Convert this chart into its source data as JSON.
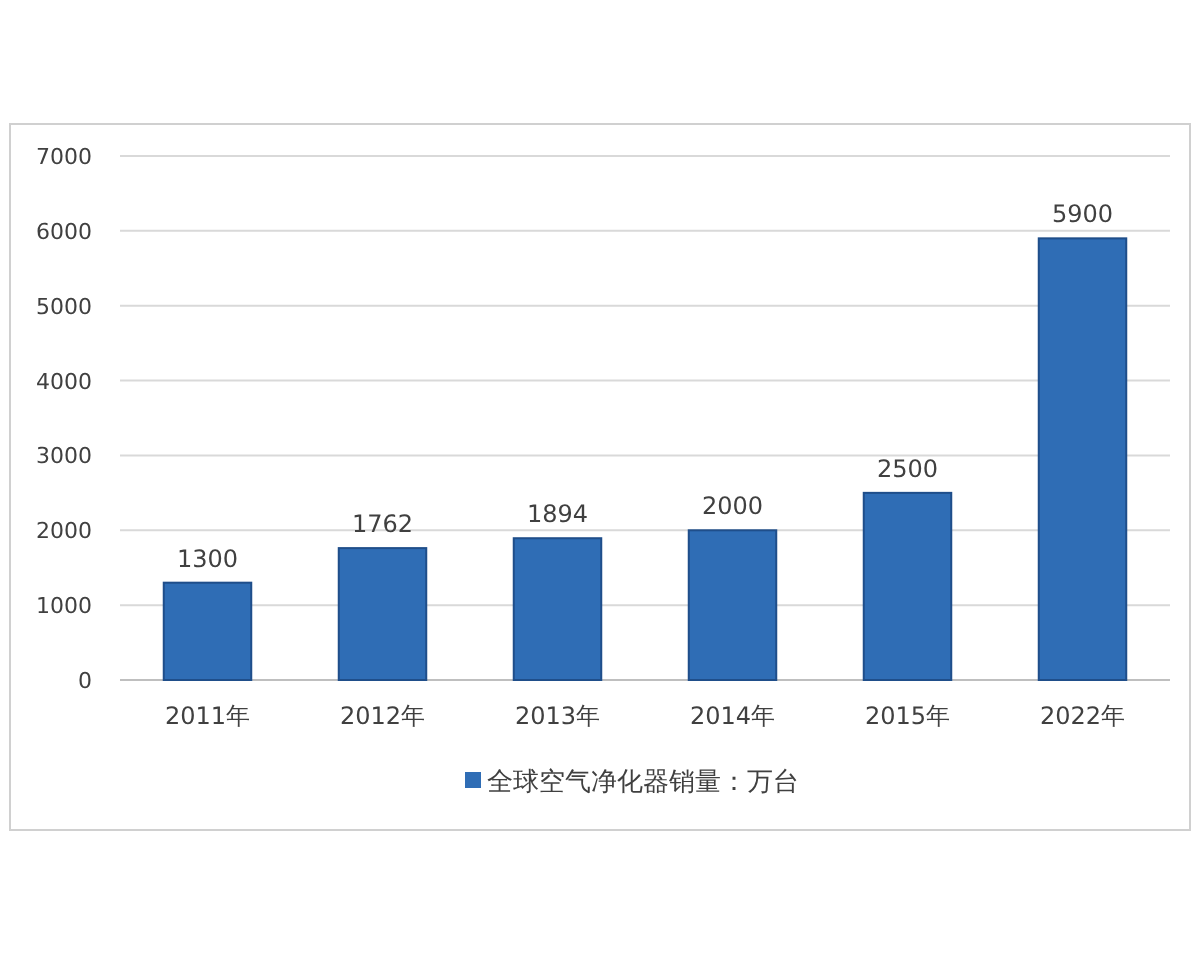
{
  "chart_data": {
    "type": "bar",
    "categories": [
      "2011年",
      "2012年",
      "2013年",
      "2014年",
      "2015年",
      "2022年"
    ],
    "series": [
      {
        "name": "全球空气净化器销量：万台",
        "color": "#2f6db5",
        "values": [
          1300,
          1762,
          1894,
          2000,
          2500,
          5900
        ]
      }
    ],
    "ylim": [
      0,
      7000
    ],
    "yticks": [
      0,
      1000,
      2000,
      3000,
      4000,
      5000,
      6000,
      7000
    ],
    "grid": "y",
    "data_labels": true,
    "legend": "bottom"
  }
}
